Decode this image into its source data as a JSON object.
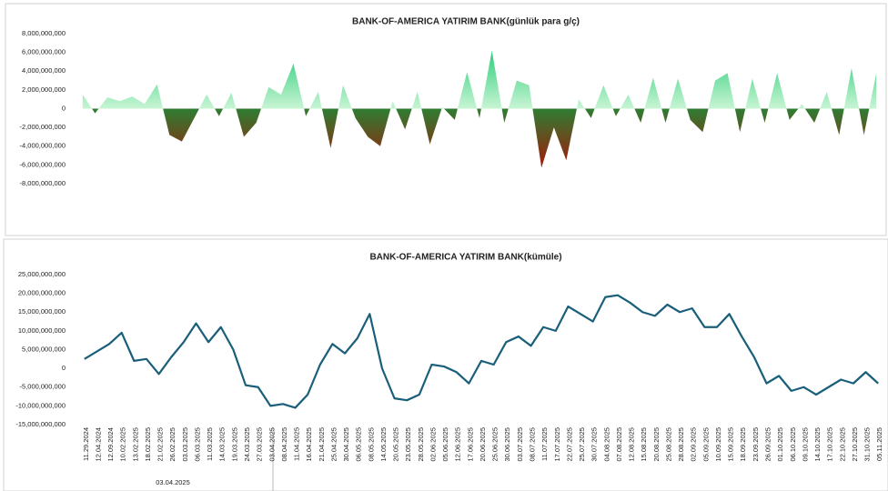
{
  "chart_data": [
    {
      "type": "area",
      "title": "BANK-OF-AMERICA YATIRIM BANK(günlük para g/ç)",
      "colors": {
        "positive_top": "#00c060",
        "positive_base": "#c8f5d4",
        "negative_base": "#2e7d32",
        "negative_bottom": "#c00000"
      },
      "ylim": [
        -8000000000.0,
        8000000000.0
      ],
      "yticks": [
        {
          "value": 8000000000.0,
          "label": "8,000,000,000"
        },
        {
          "value": 6000000000.0,
          "label": "6,000,000,000"
        },
        {
          "value": 4000000000.0,
          "label": "4,000,000,000"
        },
        {
          "value": 2000000000.0,
          "label": "2,000,000,000"
        },
        0,
        {
          "value": -2000000000.0,
          "label": "-2,000,000,000"
        },
        {
          "value": -4000000000.0,
          "label": "-4,000,000,000"
        },
        {
          "value": -6000000000.0,
          "label": "-6,000,000,000"
        },
        {
          "value": -8000000000.0,
          "label": "-8,000,000,000"
        }
      ],
      "values": [
        1500000000.0,
        -500000000.0,
        1200000000.0,
        800000000.0,
        1300000000.0,
        500000000.0,
        2600000000.0,
        -2800000000.0,
        -3500000000.0,
        -1000000000.0,
        1500000000.0,
        -800000000.0,
        1700000000.0,
        -3000000000.0,
        -1500000000.0,
        2300000000.0,
        1500000000.0,
        4800000000.0,
        -800000000.0,
        1800000000.0,
        -4200000000.0,
        2500000000.0,
        -1000000000.0,
        -3000000000.0,
        -4000000000.0,
        800000000.0,
        -2200000000.0,
        1800000000.0,
        -3800000000.0,
        200000000.0,
        -1200000000.0,
        3900000000.0,
        -1000000000.0,
        6200000000.0,
        -1500000000.0,
        3000000000.0,
        2500000000.0,
        -6300000000.0,
        -2000000000.0,
        -5500000000.0,
        1000000000.0,
        -1000000000.0,
        2500000000.0,
        -800000000.0,
        1500000000.0,
        -1500000000.0,
        3300000000.0,
        -1500000000.0,
        3200000000.0,
        -1200000000.0,
        -2500000000.0,
        3000000000.0,
        3800000000.0,
        -2500000000.0,
        3200000000.0,
        -1500000000.0,
        3800000000.0,
        -1200000000.0,
        500000000.0,
        -1500000000.0,
        1800000000.0,
        -2800000000.0,
        4300000000.0,
        -2800000000.0,
        3800000000.0
      ]
    },
    {
      "type": "line",
      "title": "BANK-OF-AMERICA YATIRIM BANK(kümüle)",
      "color": "#1a5f7a",
      "group_label": "03.04.2025",
      "ylim": [
        -15000000000.0,
        25000000000.0
      ],
      "yticks": [
        {
          "value": 25000000000.0,
          "label": "25,000,000,000"
        },
        {
          "value": 20000000000.0,
          "label": "20,000,000,000"
        },
        {
          "value": 15000000000.0,
          "label": "15,000,000,000"
        },
        {
          "value": 10000000000.0,
          "label": "10,000,000,000"
        },
        {
          "value": 5000000000.0,
          "label": "5,000,000,000"
        },
        0,
        {
          "value": -5000000000.0,
          "label": "-5,000,000,000"
        },
        {
          "value": -10000000000.0,
          "label": "-10,000,000,000"
        },
        {
          "value": -15000000000.0,
          "label": "-15,000,000,000"
        }
      ],
      "categories": [
        "11.29.2024",
        "12.04.2024",
        "12.09.2024",
        "10.02.2025",
        "13.02.2025",
        "18.02.2025",
        "21.02.2025",
        "26.02.2025",
        "03.03.2025",
        "06.03.2025",
        "11.03.2025",
        "14.03.2025",
        "19.03.2025",
        "24.03.2025",
        "27.03.2025",
        "03.04.2025",
        "08.04.2025",
        "11.04.2025",
        "16.04.2025",
        "21.04.2025",
        "25.04.2025",
        "30.04.2025",
        "06.05.2025",
        "08.05.2025",
        "14.05.2025",
        "20.05.2025",
        "23.05.2025",
        "28.05.2025",
        "02.06.2025",
        "05.06.2025",
        "12.06.2025",
        "17.06.2025",
        "20.06.2025",
        "25.06.2025",
        "30.06.2025",
        "03.07.2025",
        "08.07.2025",
        "11.07.2025",
        "17.07.2025",
        "22.07.2025",
        "25.07.2025",
        "30.07.2025",
        "04.08.2025",
        "07.08.2025",
        "12.08.2025",
        "15.08.2025",
        "20.08.2025",
        "25.08.2025",
        "28.08.2025",
        "02.09.2025",
        "05.09.2025",
        "10.09.2025",
        "15.09.2025",
        "18.09.2025",
        "23.09.2025",
        "26.09.2025",
        "01.10.2025",
        "06.10.2025",
        "09.10.2025",
        "14.10.2025",
        "17.10.2025",
        "22.10.2025",
        "27.10.2025",
        "31.10.2025",
        "05.11.2025"
      ],
      "values": [
        2500000000.0,
        4500000000.0,
        6500000000.0,
        9500000000.0,
        2000000000.0,
        2500000000.0,
        -1500000000.0,
        3000000000.0,
        7000000000.0,
        12000000000.0,
        7000000000.0,
        11000000000.0,
        5000000000.0,
        -4500000000.0,
        -5000000000.0,
        -10000000000.0,
        -9500000000.0,
        -10500000000.0,
        -7000000000.0,
        1000000000.0,
        6500000000.0,
        4000000000.0,
        8000000000.0,
        14500000000.0,
        0,
        -8000000000.0,
        -8500000000.0,
        -7000000000.0,
        1000000000.0,
        500000000.0,
        -1000000000.0,
        -4000000000.0,
        2000000000.0,
        1000000000.0,
        7000000000.0,
        8500000000.0,
        6000000000.0,
        11000000000.0,
        10000000000.0,
        16500000000.0,
        14500000000.0,
        12500000000.0,
        19000000000.0,
        19500000000.0,
        17500000000.0,
        15000000000.0,
        14000000000.0,
        17000000000.0,
        15000000000.0,
        16000000000.0,
        11000000000.0,
        11000000000.0,
        14500000000.0,
        8500000000.0,
        3000000000.0,
        -4000000000.0,
        -2000000000.0,
        -6000000000.0,
        -5000000000.0,
        -7000000000.0,
        -5000000000.0,
        -3000000000.0,
        -4000000000.0,
        -1000000000.0,
        -4000000000.0
      ]
    }
  ]
}
